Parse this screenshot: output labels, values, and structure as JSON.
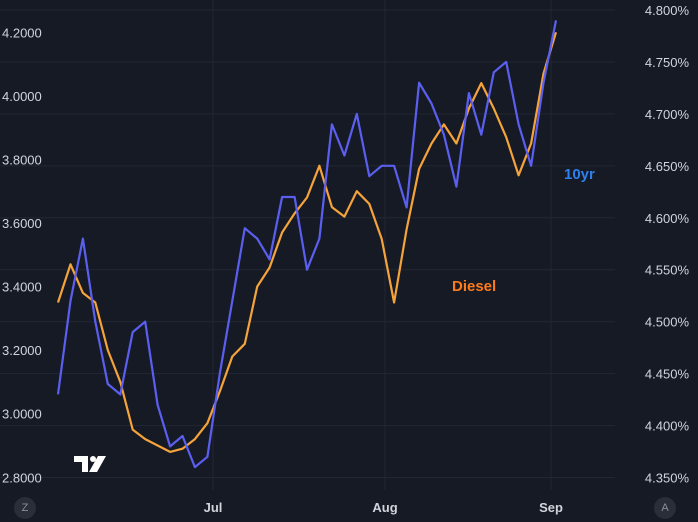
{
  "chart_data": {
    "type": "line",
    "x_ticks": [
      "Jul",
      "Aug",
      "Sep"
    ],
    "left_axis": {
      "range": [
        2.76,
        4.27
      ],
      "ticks": [
        "4.2000",
        "4.0000",
        "3.8000",
        "3.6000",
        "3.4000",
        "3.2000",
        "3.0000",
        "2.8000"
      ]
    },
    "right_axis": {
      "range": [
        4.338,
        4.8
      ],
      "ticks": [
        "4.800%",
        "4.750%",
        "4.700%",
        "4.650%",
        "4.600%",
        "4.550%",
        "4.500%",
        "4.450%",
        "4.400%",
        "4.350%"
      ]
    },
    "grid": true,
    "series": [
      {
        "name": "10yr",
        "axis": "right",
        "color": "#5b5ff0",
        "label_color": "#2e7ff0",
        "x": [
          "Jun 1",
          "Jun 3",
          "Jun 6",
          "Jun 8",
          "Jun 10",
          "Jun 13",
          "Jun 15",
          "Jun 17",
          "Jun 20",
          "Jun 22",
          "Jun 24",
          "Jun 27",
          "Jun 29",
          "Jul 1",
          "Jul 3",
          "Jul 6",
          "Jul 8",
          "Jul 10",
          "Jul 12",
          "Jul 15",
          "Jul 17",
          "Jul 19",
          "Jul 22",
          "Jul 24",
          "Jul 26",
          "Jul 29",
          "Jul 31",
          "Aug 2",
          "Aug 5",
          "Aug 7",
          "Aug 9",
          "Aug 12",
          "Aug 14",
          "Aug 16",
          "Aug 19",
          "Aug 21",
          "Aug 23",
          "Aug 26",
          "Aug 28",
          "Aug 30",
          "Sep 1"
        ],
        "values": [
          4.43,
          4.52,
          4.58,
          4.5,
          4.44,
          4.43,
          4.49,
          4.5,
          4.42,
          4.38,
          4.39,
          4.36,
          4.37,
          4.45,
          4.52,
          4.59,
          4.58,
          4.56,
          4.62,
          4.62,
          4.55,
          4.58,
          4.69,
          4.66,
          4.7,
          4.64,
          4.65,
          4.65,
          4.61,
          4.73,
          4.71,
          4.68,
          4.63,
          4.72,
          4.68,
          4.74,
          4.75,
          4.69,
          4.65,
          4.73,
          4.79
        ]
      },
      {
        "name": "Diesel",
        "axis": "left",
        "color": "#f5a33a",
        "label_color": "#ff7a1a",
        "x": [
          "Jun 1",
          "Jun 3",
          "Jun 6",
          "Jun 8",
          "Jun 10",
          "Jun 13",
          "Jun 15",
          "Jun 17",
          "Jun 20",
          "Jun 22",
          "Jun 24",
          "Jun 27",
          "Jun 29",
          "Jul 1",
          "Jul 3",
          "Jul 6",
          "Jul 8",
          "Jul 10",
          "Jul 12",
          "Jul 15",
          "Jul 17",
          "Jul 19",
          "Jul 22",
          "Jul 24",
          "Jul 26",
          "Jul 29",
          "Jul 31",
          "Aug 2",
          "Aug 5",
          "Aug 7",
          "Aug 9",
          "Aug 12",
          "Aug 14",
          "Aug 16",
          "Aug 19",
          "Aug 21",
          "Aug 23",
          "Aug 26",
          "Aug 28",
          "Aug 30",
          "Sep 1"
        ],
        "values": [
          3.35,
          3.47,
          3.38,
          3.35,
          3.2,
          3.1,
          2.95,
          2.92,
          2.9,
          2.88,
          2.89,
          2.92,
          2.97,
          3.07,
          3.18,
          3.22,
          3.4,
          3.46,
          3.57,
          3.63,
          3.68,
          3.78,
          3.65,
          3.62,
          3.7,
          3.66,
          3.55,
          3.35,
          3.58,
          3.77,
          3.85,
          3.91,
          3.85,
          3.96,
          4.04,
          3.96,
          3.87,
          3.75,
          3.85,
          4.07,
          4.2
        ]
      }
    ]
  },
  "buttons": {
    "left_corner": "Z",
    "right_corner": "A"
  }
}
